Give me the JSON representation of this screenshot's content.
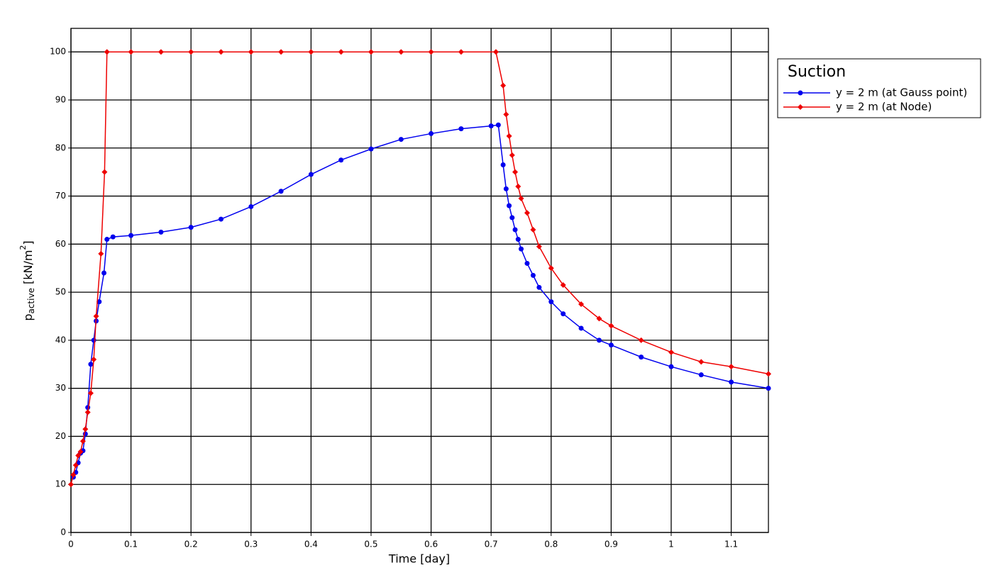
{
  "chart_data": {
    "type": "line",
    "x_label": "Time [day]",
    "y_label": {
      "base": "p",
      "sub": "active",
      "unit": "[kN/m",
      "sup": "2",
      "close": "]"
    },
    "legend_title": "Suction",
    "legend": "right",
    "grid": true,
    "xlim": [
      0,
      1.162
    ],
    "ylim": [
      0,
      104.9
    ],
    "xticks": [
      0,
      0.1,
      0.2,
      0.3,
      0.4,
      0.5,
      0.6,
      0.7,
      0.8,
      0.9,
      1,
      1.1
    ],
    "yticks": [
      0,
      10,
      20,
      30,
      40,
      50,
      60,
      70,
      80,
      90,
      100
    ],
    "series": [
      {
        "name": "y = 2 m (at Gauss point)",
        "color": "#0000ee",
        "marker": "circle",
        "x": [
          0.004,
          0.008,
          0.012,
          0.016,
          0.02,
          0.024,
          0.028,
          0.033,
          0.038,
          0.042,
          0.047,
          0.055,
          0.06,
          0.07,
          0.1,
          0.15,
          0.2,
          0.25,
          0.3,
          0.35,
          0.4,
          0.45,
          0.5,
          0.55,
          0.6,
          0.65,
          0.7,
          0.712,
          0.72,
          0.725,
          0.73,
          0.735,
          0.74,
          0.745,
          0.75,
          0.76,
          0.77,
          0.78,
          0.8,
          0.82,
          0.85,
          0.88,
          0.9,
          0.95,
          1.0,
          1.05,
          1.1,
          1.162
        ],
        "values": [
          11.5,
          12.5,
          14.5,
          16.5,
          17,
          20.5,
          26,
          35,
          40,
          44,
          48,
          54,
          61,
          61.5,
          61.8,
          62.5,
          63.5,
          65.2,
          67.8,
          71,
          74.5,
          77.5,
          79.8,
          81.8,
          83,
          84,
          84.6,
          84.8,
          76.5,
          71.5,
          68,
          65.5,
          63,
          61,
          59,
          56,
          53.5,
          51,
          48,
          45.5,
          42.5,
          40,
          39,
          36.5,
          34.5,
          32.8,
          31.3,
          30
        ]
      },
      {
        "name": "y = 2 m (at Node)",
        "color": "#ee0000",
        "marker": "diamond",
        "x": [
          0,
          0.004,
          0.008,
          0.012,
          0.016,
          0.02,
          0.024,
          0.028,
          0.033,
          0.038,
          0.042,
          0.05,
          0.056,
          0.06,
          0.1,
          0.15,
          0.2,
          0.25,
          0.3,
          0.35,
          0.4,
          0.45,
          0.5,
          0.55,
          0.6,
          0.65,
          0.708,
          0.72,
          0.725,
          0.73,
          0.735,
          0.74,
          0.745,
          0.75,
          0.76,
          0.77,
          0.78,
          0.8,
          0.82,
          0.85,
          0.88,
          0.9,
          0.95,
          1.0,
          1.05,
          1.1,
          1.162
        ],
        "values": [
          10,
          12,
          14,
          16,
          16.8,
          19,
          21.5,
          25,
          29,
          36,
          45,
          58,
          75,
          100,
          100,
          100,
          100,
          100,
          100,
          100,
          100,
          100,
          100,
          100,
          100,
          100,
          100,
          93,
          87,
          82.5,
          78.5,
          75,
          72,
          69.5,
          66.5,
          63,
          59.5,
          55,
          51.5,
          47.5,
          44.5,
          43,
          40,
          37.5,
          35.5,
          34.5,
          33
        ]
      }
    ]
  }
}
